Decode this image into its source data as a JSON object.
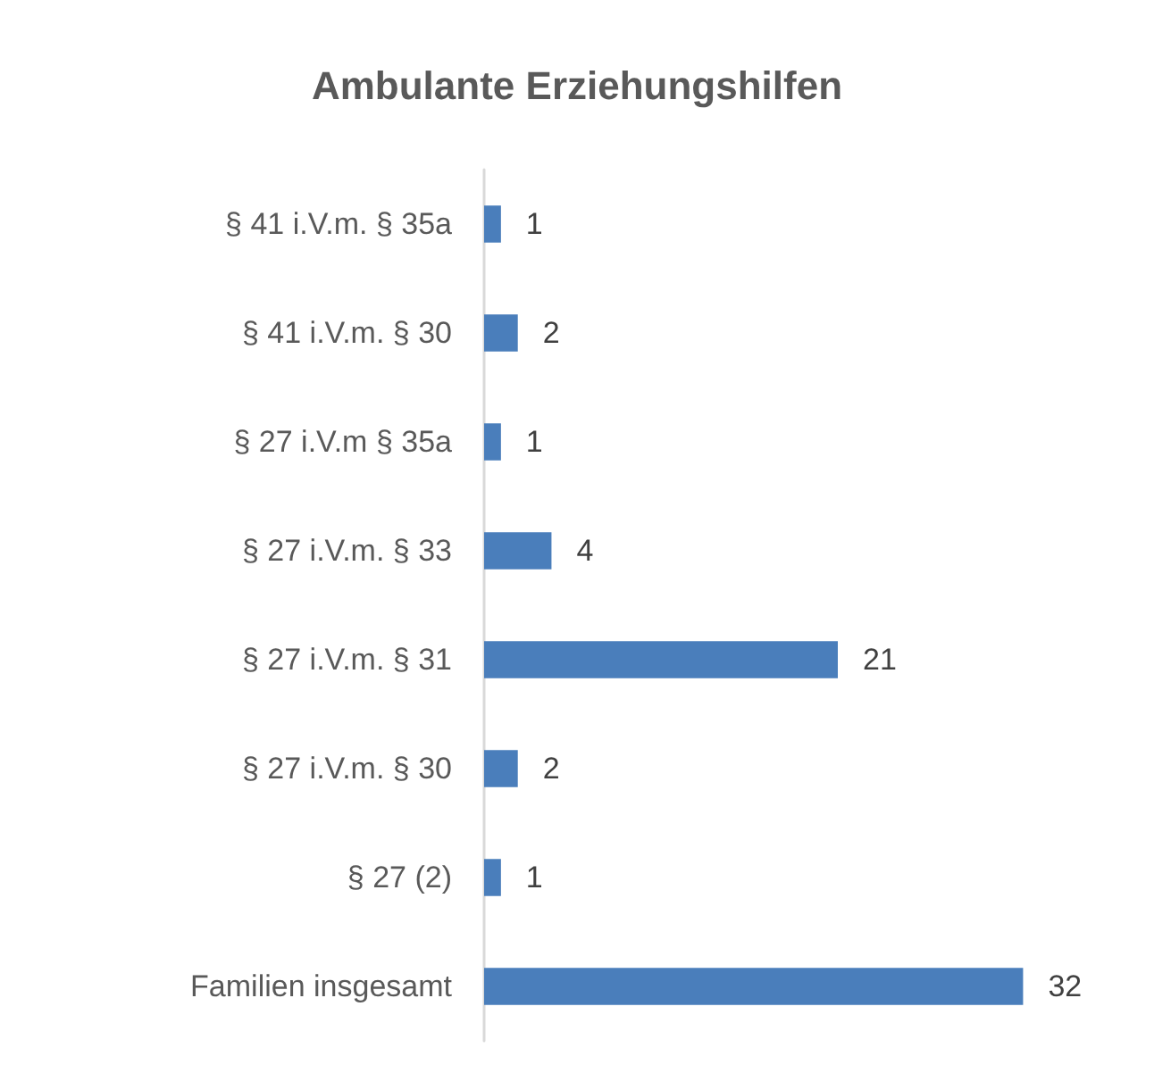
{
  "chart_data": {
    "type": "bar",
    "title": "Ambulante Erziehungshilfen",
    "orientation": "horizontal",
    "categories": [
      "§ 41 i.V.m. § 35a",
      "§ 41 i.V.m. § 30",
      "§ 27 i.V.m § 35a",
      "§ 27 i.V.m. § 33",
      "§ 27 i.V.m. § 31",
      "§ 27 i.V.m. § 30",
      "§ 27 (2)",
      "Familien insgesamt"
    ],
    "values": [
      1,
      2,
      1,
      4,
      21,
      2,
      1,
      32
    ],
    "color": "#4a7ebb",
    "data_labels": true,
    "tick_labels": "y"
  }
}
